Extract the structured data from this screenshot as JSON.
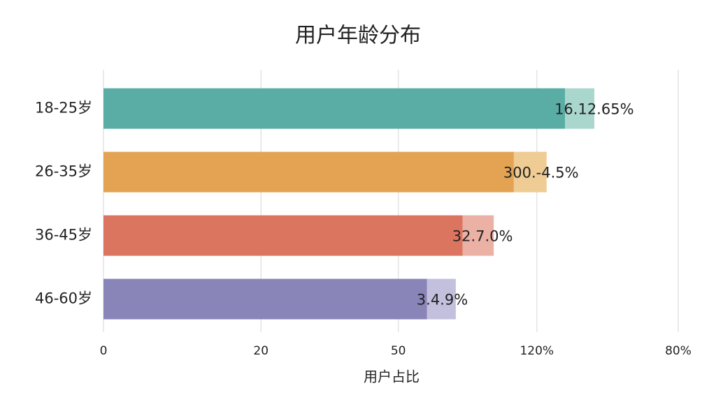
{
  "chart_data": {
    "type": "hbar-stacked",
    "title": "用户年龄分布",
    "x_label": "用户占比",
    "categories": [
      "18-25岁",
      "26-35岁",
      "36-45岁",
      "46-60岁"
    ],
    "series": [
      {
        "colors": [
          "#5aada4",
          "#e3a352",
          "#dc7560",
          "#8a85b8"
        ],
        "values": [
          80.3,
          71.4,
          62.5,
          56.3
        ]
      },
      {
        "colors": [
          "#a9d6cd",
          "#efcc93",
          "#ebb1a4",
          "#c3c0dd"
        ],
        "values": [
          5.1,
          5.7,
          5.4,
          5.0
        ]
      }
    ],
    "annotations": [
      "16.12.65%",
      "300.-4.5%",
      "32.7.0%",
      "3.4.9%"
    ],
    "xlim": [
      0,
      100
    ],
    "xticks": [
      0,
      {
        "value": 27.4,
        "label": "20"
      },
      {
        "value": 51.3,
        "label": "50"
      },
      {
        "value": 75.4,
        "label": "120%"
      },
      {
        "value": 100,
        "label": "80%"
      }
    ],
    "grid": true
  }
}
